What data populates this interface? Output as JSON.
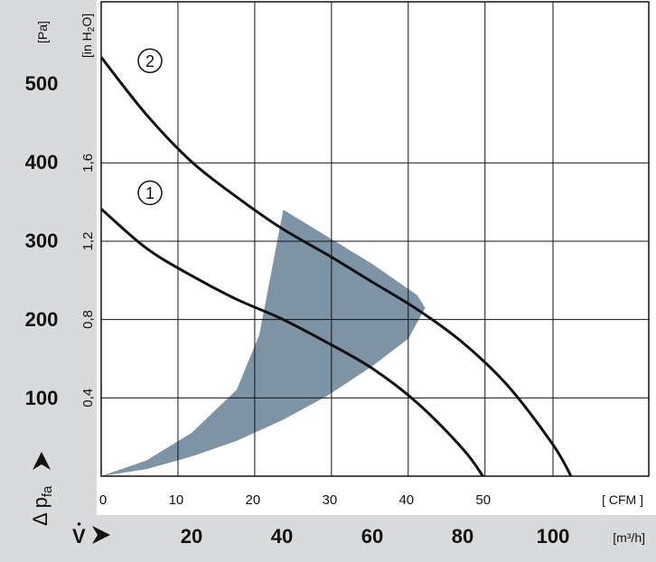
{
  "chart_data": {
    "type": "line",
    "title": "",
    "y_label": {
      "symbol": "Δ p",
      "subscript": "fa"
    },
    "x_label": {
      "symbol": "V"
    },
    "y_axis_pa": {
      "unit": "[Pa]",
      "ticks": [
        "100",
        "200",
        "300",
        "400",
        "500"
      ],
      "tick_values": [
        100,
        200,
        300,
        400,
        500
      ],
      "range": [
        0,
        600
      ]
    },
    "y_axis_inh2o": {
      "unit": "[in H2O]",
      "unit_main": "[in H",
      "unit_sub": "2",
      "unit_end": "O]",
      "ticks": [
        "0,4",
        "0,8",
        "1,2",
        "1,6"
      ],
      "tick_values_pa": [
        99.6,
        199.3,
        298.9,
        398.5
      ]
    },
    "x_axis_cfm": {
      "unit": "[ CFM ]",
      "ticks": [
        "0",
        "10",
        "20",
        "30",
        "40",
        "50"
      ],
      "tick_values_m3h": [
        0,
        16.99,
        33.98,
        50.97,
        67.96,
        84.95
      ]
    },
    "x_axis_m3h": {
      "unit": "[m³/h]",
      "ticks": [
        "20",
        "40",
        "60",
        "80",
        "100"
      ],
      "tick_values": [
        20,
        40,
        60,
        80,
        100
      ],
      "range": [
        0,
        120
      ]
    },
    "grid": true,
    "series": [
      {
        "name": "1",
        "x": [
          0,
          10,
          20,
          30,
          40,
          50,
          60,
          70,
          80,
          84.5
        ],
        "y": [
          340,
          290,
          255,
          225,
          200,
          170,
          137,
          93,
          35,
          0
        ],
        "label_at": [
          6,
          357
        ]
      },
      {
        "name": "2",
        "x": [
          0,
          10,
          20,
          30,
          40,
          50,
          60,
          70,
          80,
          90,
          100,
          104
        ],
        "y": [
          533,
          460,
          400,
          355,
          315,
          282,
          247,
          212,
          170,
          115,
          40,
          0
        ],
        "label_at": [
          6,
          525
        ]
      }
    ],
    "operating_range": {
      "upper": {
        "x": [
          40.3,
          50,
          60,
          70,
          71.7
        ],
        "y": [
          339,
          305,
          270,
          230,
          214
        ]
      },
      "lower": {
        "x": [
          0,
          10,
          20,
          30,
          40,
          50,
          60,
          68
        ],
        "y": [
          0,
          9,
          25,
          45,
          71,
          102,
          140,
          175
        ]
      },
      "left": {
        "x": [
          0,
          10,
          20,
          30,
          35,
          40.3
        ],
        "y": [
          0,
          20,
          55,
          110,
          180,
          339
        ]
      },
      "color": "#7d93a6"
    }
  }
}
